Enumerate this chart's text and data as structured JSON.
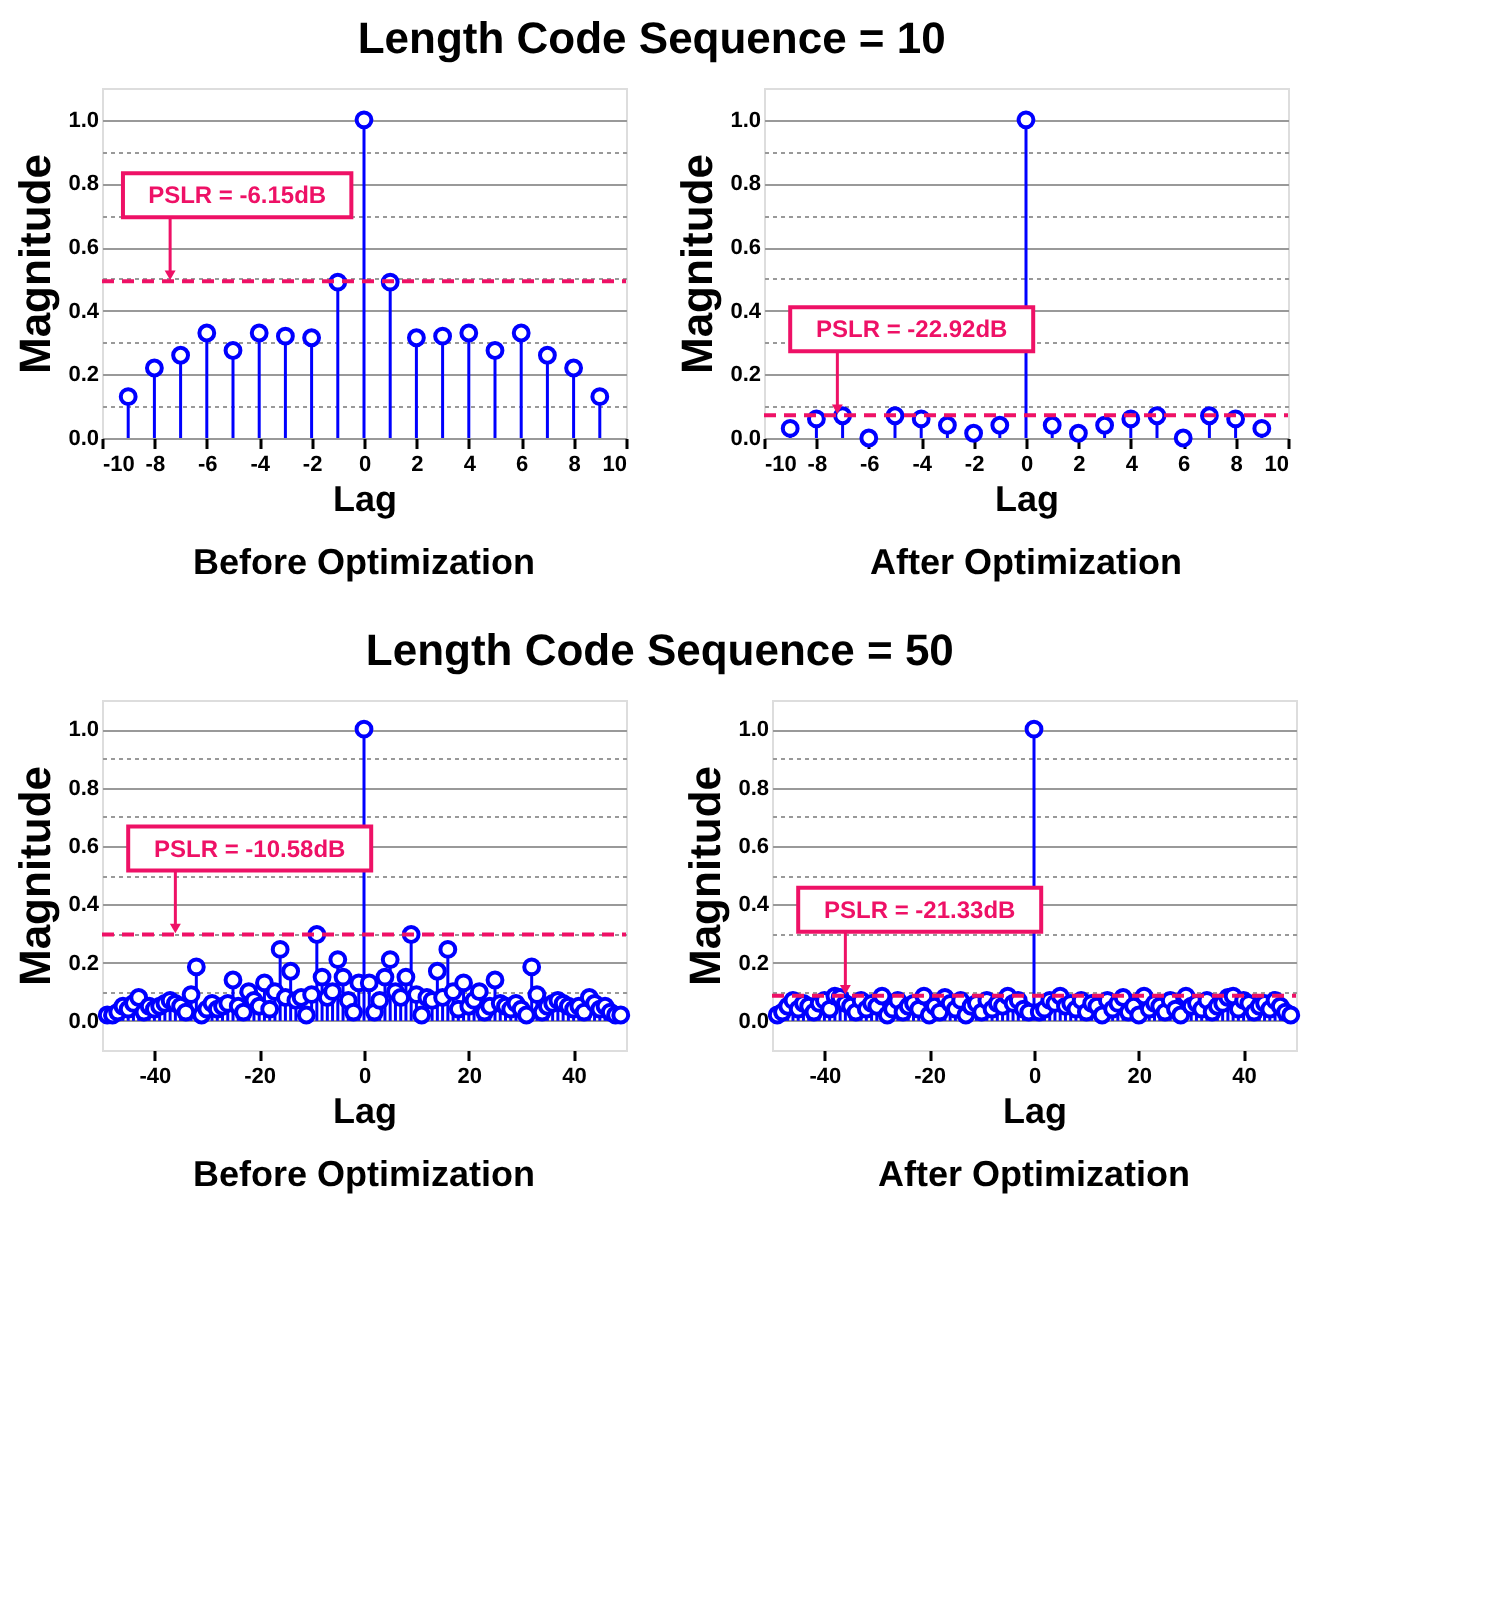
{
  "chart_data": [
    {
      "type": "lollipop",
      "title": "Length Code Sequence = 10",
      "subtitle": "Before Optimization",
      "xlabel": "Lag",
      "ylabel": "Magnitude",
      "x": [
        -9,
        -8,
        -7,
        -6,
        -5,
        -4,
        -3,
        -2,
        -1,
        0,
        1,
        2,
        3,
        4,
        5,
        6,
        7,
        8,
        9
      ],
      "series": [
        {
          "color": "#0000ff",
          "values": [
            0.13,
            0.22,
            0.26,
            0.33,
            0.275,
            0.33,
            0.32,
            0.315,
            0.49,
            1.0,
            0.49,
            0.315,
            0.32,
            0.33,
            0.275,
            0.33,
            0.26,
            0.22,
            0.13
          ]
        }
      ],
      "xlim": [
        -10,
        10
      ],
      "xticks": [
        -10,
        -8,
        -6,
        -4,
        -2,
        0,
        2,
        4,
        6,
        8,
        10
      ],
      "ylim": [
        0,
        1.1
      ],
      "yticks": [
        {
          "value": 0,
          "label": "0.0"
        },
        {
          "value": 0.1,
          "label": null
        },
        0.2,
        {
          "value": 0.3,
          "label": null
        },
        0.4,
        {
          "value": 0.5,
          "label": null
        },
        0.6,
        {
          "value": 0.7,
          "label": null
        },
        0.8,
        {
          "value": 0.9,
          "label": null
        },
        {
          "value": 1,
          "label": "1.0"
        }
      ],
      "ref_lines": [
        {
          "axis": "y",
          "value": 0.4925,
          "color": "#ee1166",
          "line_style": "dashed"
        }
      ],
      "annotations": [
        {
          "text": "PSLR = -6.15dB",
          "x": -7.4,
          "y": 0.4925
        }
      ],
      "grid": "y",
      "marker": "circle"
    },
    {
      "type": "lollipop",
      "subtitle": "After Optimization",
      "xlabel": "Lag",
      "ylabel": "Magnitude",
      "x": [
        -9,
        -8,
        -7,
        -6,
        -5,
        -4,
        -3,
        -2,
        -1,
        0,
        1,
        2,
        3,
        4,
        5,
        6,
        7,
        8,
        9
      ],
      "series": [
        {
          "color": "#0000ff",
          "values": [
            0.03,
            0.06,
            0.07,
            0.0,
            0.07,
            0.06,
            0.04,
            0.015,
            0.04,
            1.0,
            0.04,
            0.015,
            0.04,
            0.06,
            0.07,
            0.0,
            0.07,
            0.06,
            0.03
          ]
        }
      ],
      "xlim": [
        -10,
        10
      ],
      "xticks": [
        -10,
        -8,
        -6,
        -4,
        -2,
        0,
        2,
        4,
        6,
        8,
        10
      ],
      "ylim": [
        0,
        1.1
      ],
      "yticks": [
        {
          "value": 0,
          "label": "0.0"
        },
        {
          "value": 0.1,
          "label": null
        },
        0.2,
        {
          "value": 0.3,
          "label": null
        },
        0.4,
        {
          "value": 0.5,
          "label": null
        },
        0.6,
        {
          "value": 0.7,
          "label": null
        },
        0.8,
        {
          "value": 0.9,
          "label": null
        },
        {
          "value": 1,
          "label": "1.0"
        }
      ],
      "ref_lines": [
        {
          "axis": "y",
          "value": 0.0714,
          "color": "#ee1166",
          "line_style": "dashed"
        }
      ],
      "annotations": [
        {
          "text": "PSLR = -22.92dB",
          "x": -7.2,
          "y": 0.0714
        }
      ],
      "grid": "y",
      "marker": "circle"
    },
    {
      "type": "lollipop",
      "title": "Length Code Sequence = 50",
      "subtitle": "Before Optimization",
      "xlabel": "Lag",
      "ylabel": "Magnitude",
      "x": [
        -49,
        -48,
        -47,
        -46,
        -45,
        -44,
        -43,
        -42,
        -41,
        -40,
        -39,
        -38,
        -37,
        -36,
        -35,
        -34,
        -33,
        -32,
        -31,
        -30,
        -29,
        -28,
        -27,
        -26,
        -25,
        -24,
        -23,
        -22,
        -21,
        -20,
        -19,
        -18,
        -17,
        -16,
        -15,
        -14,
        -13,
        -12,
        -11,
        -10,
        -9,
        -8,
        -7,
        -6,
        -5,
        -4,
        -3,
        -2,
        -1,
        0,
        1,
        2,
        3,
        4,
        5,
        6,
        7,
        8,
        9,
        10,
        11,
        12,
        13,
        14,
        15,
        16,
        17,
        18,
        19,
        20,
        21,
        22,
        23,
        24,
        25,
        26,
        27,
        28,
        29,
        30,
        31,
        32,
        33,
        34,
        35,
        36,
        37,
        38,
        39,
        40,
        41,
        42,
        43,
        44,
        45,
        46,
        47,
        48,
        49
      ],
      "series": [
        {
          "color": "#0000ff",
          "values": [
            0.02,
            0.02,
            0.03,
            0.05,
            0.04,
            0.06,
            0.08,
            0.03,
            0.05,
            0.04,
            0.05,
            0.06,
            0.07,
            0.06,
            0.05,
            0.03,
            0.09,
            0.185,
            0.02,
            0.04,
            0.06,
            0.04,
            0.05,
            0.06,
            0.14,
            0.05,
            0.03,
            0.1,
            0.07,
            0.05,
            0.13,
            0.04,
            0.1,
            0.245,
            0.08,
            0.17,
            0.07,
            0.08,
            0.02,
            0.09,
            0.296,
            0.15,
            0.08,
            0.1,
            0.21,
            0.15,
            0.07,
            0.03,
            0.13,
            1.0,
            0.13,
            0.03,
            0.07,
            0.15,
            0.21,
            0.1,
            0.08,
            0.15,
            0.296,
            0.09,
            0.02,
            0.08,
            0.07,
            0.17,
            0.08,
            0.245,
            0.1,
            0.04,
            0.13,
            0.05,
            0.07,
            0.1,
            0.03,
            0.05,
            0.14,
            0.06,
            0.05,
            0.04,
            0.06,
            0.04,
            0.02,
            0.185,
            0.09,
            0.03,
            0.05,
            0.06,
            0.07,
            0.06,
            0.05,
            0.04,
            0.05,
            0.03,
            0.08,
            0.06,
            0.04,
            0.05,
            0.03,
            0.02,
            0.02
          ]
        }
      ],
      "xlim": [
        -50,
        50
      ],
      "xticks": [
        -40,
        -20,
        0,
        20,
        40
      ],
      "ylim": [
        -0.1,
        1.1
      ],
      "yticks": [
        {
          "value": 0,
          "label": "0.0"
        },
        {
          "value": 0.1,
          "label": null
        },
        0.2,
        {
          "value": 0.3,
          "label": null
        },
        0.4,
        {
          "value": 0.5,
          "label": null
        },
        0.6,
        {
          "value": 0.7,
          "label": null
        },
        0.8,
        {
          "value": 0.9,
          "label": null
        },
        {
          "value": 1,
          "label": "1.0"
        }
      ],
      "ref_lines": [
        {
          "axis": "y",
          "value": 0.2957,
          "color": "#ee1166",
          "line_style": "dashed"
        }
      ],
      "annotations": [
        {
          "text": "PSLR = -10.58dB",
          "x": -36,
          "y": 0.2957
        }
      ],
      "grid": "y",
      "marker": "circle"
    },
    {
      "type": "lollipop",
      "subtitle": "After Optimization",
      "xlabel": "Lag",
      "ylabel": "Magnitude",
      "x": [
        -49,
        -48,
        -47,
        -46,
        -45,
        -44,
        -43,
        -42,
        -41,
        -40,
        -39,
        -38,
        -37,
        -36,
        -35,
        -34,
        -33,
        -32,
        -31,
        -30,
        -29,
        -28,
        -27,
        -26,
        -25,
        -24,
        -23,
        -22,
        -21,
        -20,
        -19,
        -18,
        -17,
        -16,
        -15,
        -14,
        -13,
        -12,
        -11,
        -10,
        -9,
        -8,
        -7,
        -6,
        -5,
        -4,
        -3,
        -2,
        -1,
        0,
        1,
        2,
        3,
        4,
        5,
        6,
        7,
        8,
        9,
        10,
        11,
        12,
        13,
        14,
        15,
        16,
        17,
        18,
        19,
        20,
        21,
        22,
        23,
        24,
        25,
        26,
        27,
        28,
        29,
        30,
        31,
        32,
        33,
        34,
        35,
        36,
        37,
        38,
        39,
        40,
        41,
        42,
        43,
        44,
        45,
        46,
        47,
        48,
        49
      ],
      "series": [
        {
          "color": "#0000ff",
          "values": [
            0.02,
            0.03,
            0.05,
            0.07,
            0.04,
            0.06,
            0.05,
            0.03,
            0.06,
            0.07,
            0.04,
            0.085,
            0.08,
            0.06,
            0.05,
            0.03,
            0.07,
            0.04,
            0.06,
            0.05,
            0.085,
            0.02,
            0.04,
            0.07,
            0.03,
            0.05,
            0.06,
            0.04,
            0.085,
            0.02,
            0.05,
            0.03,
            0.08,
            0.06,
            0.04,
            0.07,
            0.02,
            0.05,
            0.06,
            0.03,
            0.07,
            0.04,
            0.06,
            0.05,
            0.085,
            0.06,
            0.07,
            0.04,
            0.03,
            1.0,
            0.03,
            0.04,
            0.07,
            0.06,
            0.085,
            0.05,
            0.06,
            0.04,
            0.07,
            0.03,
            0.06,
            0.05,
            0.02,
            0.07,
            0.04,
            0.06,
            0.08,
            0.03,
            0.05,
            0.02,
            0.085,
            0.04,
            0.06,
            0.05,
            0.03,
            0.07,
            0.04,
            0.02,
            0.085,
            0.05,
            0.06,
            0.04,
            0.07,
            0.03,
            0.05,
            0.06,
            0.08,
            0.085,
            0.04,
            0.07,
            0.06,
            0.03,
            0.05,
            0.06,
            0.04,
            0.07,
            0.05,
            0.03,
            0.02
          ]
        }
      ],
      "xlim": [
        -50,
        50
      ],
      "xticks": [
        -40,
        -20,
        0,
        20,
        40
      ],
      "ylim": [
        -0.1,
        1.1
      ],
      "yticks": [
        {
          "value": 0,
          "label": "0.0"
        },
        {
          "value": 0.1,
          "label": null
        },
        0.2,
        {
          "value": 0.3,
          "label": null
        },
        0.4,
        {
          "value": 0.5,
          "label": null
        },
        0.6,
        {
          "value": 0.7,
          "label": null
        },
        0.8,
        {
          "value": 0.9,
          "label": null
        },
        {
          "value": 1,
          "label": "1.0"
        }
      ],
      "ref_lines": [
        {
          "axis": "y",
          "value": 0.0858,
          "color": "#ee1166",
          "line_style": "dashed"
        }
      ],
      "annotations": [
        {
          "text": "PSLR = -21.33dB",
          "x": -36,
          "y": 0.0858
        }
      ],
      "grid": "y",
      "marker": "circle"
    }
  ]
}
